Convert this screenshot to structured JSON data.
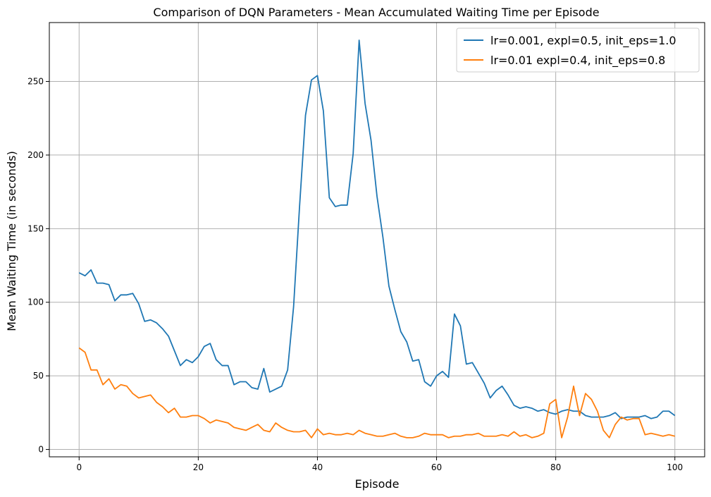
{
  "chart_data": {
    "type": "line",
    "title": "Comparison of DQN Parameters - Mean Accumulated Waiting Time per Episode",
    "xlabel": "Episode",
    "ylabel": "Mean Waiting Time (in seconds)",
    "xlim": [
      -5,
      105
    ],
    "ylim": [
      -5,
      290
    ],
    "xticks": [
      0,
      20,
      40,
      60,
      80,
      100
    ],
    "yticks": [
      0,
      50,
      100,
      150,
      200,
      250
    ],
    "grid": true,
    "legend_position": "top-right",
    "x": [
      0,
      1,
      2,
      3,
      4,
      5,
      6,
      7,
      8,
      9,
      10,
      11,
      12,
      13,
      14,
      15,
      16,
      17,
      18,
      19,
      20,
      21,
      22,
      23,
      24,
      25,
      26,
      27,
      28,
      29,
      30,
      31,
      32,
      33,
      34,
      35,
      36,
      37,
      38,
      39,
      40,
      41,
      42,
      43,
      44,
      45,
      46,
      47,
      48,
      49,
      50,
      51,
      52,
      53,
      54,
      55,
      56,
      57,
      58,
      59,
      60,
      61,
      62,
      63,
      64,
      65,
      66,
      67,
      68,
      69,
      70,
      71,
      72,
      73,
      74,
      75,
      76,
      77,
      78,
      79,
      80,
      81,
      82,
      83,
      84,
      85,
      86,
      87,
      88,
      89,
      90,
      91,
      92,
      93,
      94,
      95,
      96,
      97,
      98,
      99,
      100
    ],
    "series": [
      {
        "name": "lr=0.001, expl=0.5, init_eps=1.0",
        "color": "#1f77b4",
        "values": [
          120,
          118,
          122,
          113,
          113,
          112,
          101,
          105,
          105,
          106,
          99,
          87,
          88,
          86,
          82,
          77,
          67,
          57,
          61,
          59,
          63,
          70,
          72,
          61,
          57,
          57,
          44,
          46,
          46,
          42,
          41,
          55,
          39,
          41,
          43,
          54,
          97,
          165,
          227,
          251,
          254,
          230,
          171,
          165,
          166,
          166,
          201,
          278,
          235,
          210,
          172,
          144,
          111,
          95,
          80,
          73,
          60,
          61,
          46,
          43,
          50,
          53,
          49,
          92,
          84,
          58,
          59,
          52,
          45,
          35,
          40,
          43,
          37,
          30,
          28,
          29,
          28,
          26,
          27,
          25,
          24,
          26,
          27,
          26,
          26,
          23,
          22,
          22,
          22,
          23,
          25,
          21,
          22,
          22,
          22,
          23,
          21,
          22,
          26,
          26,
          23
        ],
        "_note": ""
      },
      {
        "name": "lr=0.01 expl=0.4, init_eps=0.8",
        "color": "#ff7f0e",
        "values": [
          69,
          66,
          54,
          54,
          44,
          48,
          41,
          44,
          43,
          38,
          35,
          36,
          37,
          32,
          29,
          25,
          28,
          22,
          22,
          23,
          23,
          21,
          18,
          20,
          19,
          18,
          15,
          14,
          13,
          15,
          17,
          13,
          12,
          18,
          15,
          13,
          12,
          12,
          13,
          8,
          14,
          10,
          11,
          10,
          10,
          11,
          10,
          13,
          11,
          10,
          9,
          9,
          10,
          11,
          9,
          8,
          8,
          9,
          11,
          10,
          10,
          10,
          8,
          9,
          9,
          10,
          10,
          11,
          9,
          9,
          9,
          10,
          9,
          12,
          9,
          10,
          8,
          9,
          11,
          31,
          34,
          8,
          22,
          43,
          23,
          38,
          34,
          26,
          13,
          8,
          17,
          22,
          20,
          21,
          21,
          10,
          11,
          10,
          9,
          10,
          9
        ]
      }
    ]
  }
}
